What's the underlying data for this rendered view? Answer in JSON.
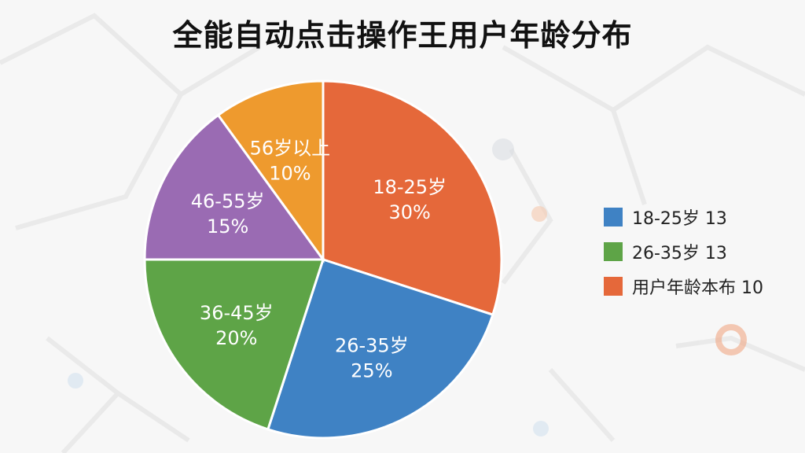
{
  "title": "全能自动点击操作王用户年龄分布",
  "chart_data": {
    "type": "pie",
    "title": "全能自动点击操作王用户年龄分布",
    "slices": [
      {
        "label": "18-25岁",
        "value": 30,
        "value_label": "30%",
        "color": "#e5683a"
      },
      {
        "label": "26-35岁",
        "value": 25,
        "value_label": "25%",
        "color": "#3f82c4"
      },
      {
        "label": "36-45岁",
        "value": 20,
        "value_label": "20%",
        "color": "#5ea447"
      },
      {
        "label": "46-55岁",
        "value": 15,
        "value_label": "15%",
        "color": "#9a6bb3"
      },
      {
        "label": "56岁以上",
        "value": 10,
        "value_label": "10%",
        "color": "#ee9a2e"
      }
    ],
    "legend_position": "right",
    "legend": [
      {
        "text": "18-25岁 13",
        "color": "#3f82c4"
      },
      {
        "text": "26-35岁 13",
        "color": "#5ea447"
      },
      {
        "text": "用户年龄本布 10",
        "color": "#e5683a"
      }
    ]
  }
}
